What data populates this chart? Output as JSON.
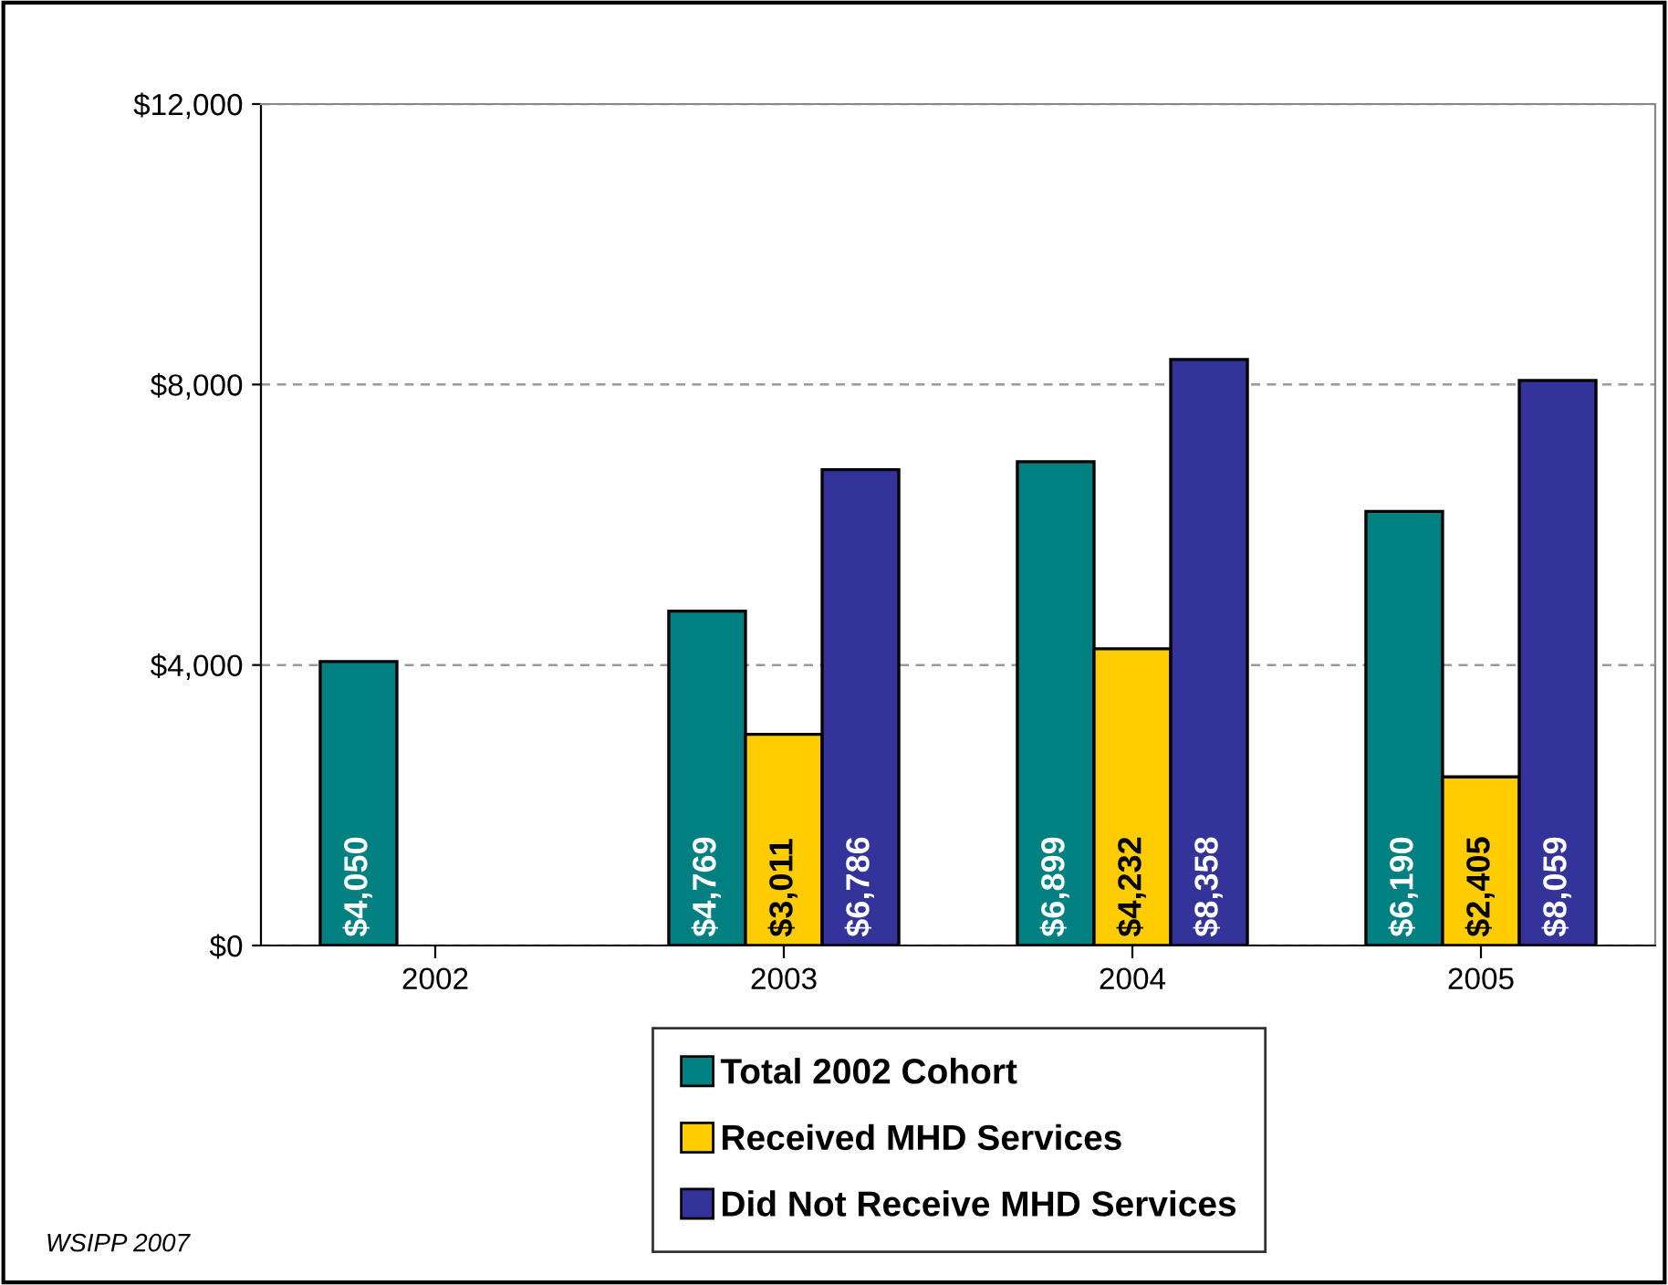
{
  "chart_data": {
    "type": "bar",
    "categories": [
      "2002",
      "2003",
      "2004",
      "2005"
    ],
    "series": [
      {
        "name": "Total 2002 Cohort",
        "color": "#008080",
        "values": [
          4050,
          4769,
          6899,
          6190
        ],
        "value_labels": [
          "$4,050",
          "$4,769",
          "$6,899",
          "$6,190"
        ]
      },
      {
        "name": "Received MHD Services",
        "color": "#ffcc00",
        "values": [
          null,
          3011,
          4232,
          2405
        ],
        "value_labels": [
          null,
          "$3,011",
          "$4,232",
          "$2,405"
        ]
      },
      {
        "name": "Did Not Receive MHD Services",
        "color": "#333399",
        "values": [
          null,
          6786,
          8358,
          8059
        ],
        "value_labels": [
          null,
          "$6,786",
          "$8,358",
          "$8,059"
        ]
      }
    ],
    "ylim": [
      0,
      12000
    ],
    "yticks": [
      {
        "value": 0,
        "label": "$0"
      },
      {
        "value": 4000,
        "label": "$4,000"
      },
      {
        "value": 8000,
        "label": "$8,000"
      },
      {
        "value": 12000,
        "label": "$12,000"
      }
    ],
    "grid": "y",
    "legend": "bottom",
    "annotations": [
      "WSIPP 2007"
    ]
  }
}
